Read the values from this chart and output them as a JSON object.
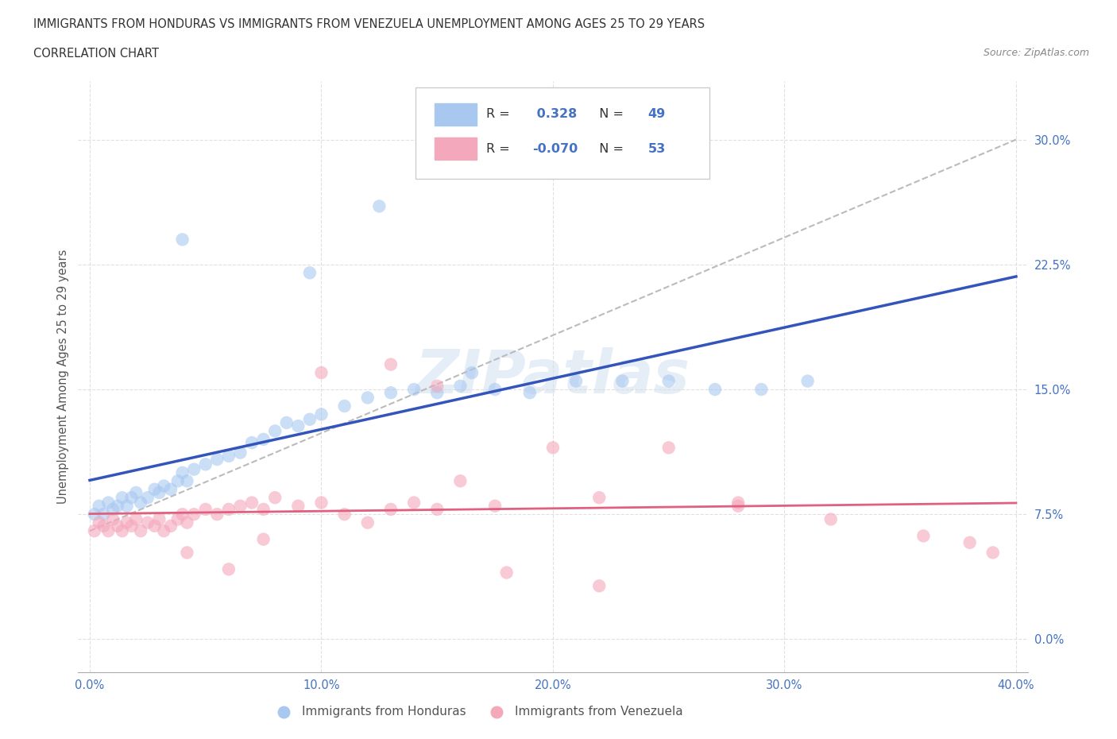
{
  "title_line1": "IMMIGRANTS FROM HONDURAS VS IMMIGRANTS FROM VENEZUELA UNEMPLOYMENT AMONG AGES 25 TO 29 YEARS",
  "title_line2": "CORRELATION CHART",
  "source_text": "Source: ZipAtlas.com",
  "ylabel": "Unemployment Among Ages 25 to 29 years",
  "xlim": [
    -0.005,
    0.405
  ],
  "ylim": [
    -0.02,
    0.335
  ],
  "xticks": [
    0.0,
    0.1,
    0.2,
    0.3,
    0.4
  ],
  "xticklabels": [
    "0.0%",
    "10.0%",
    "20.0%",
    "30.0%",
    "40.0%"
  ],
  "yticks": [
    0.0,
    0.075,
    0.15,
    0.225,
    0.3
  ],
  "yticklabels": [
    "0.0%",
    "7.5%",
    "15.0%",
    "22.5%",
    "30.0%"
  ],
  "honduras_color": "#a8c8f0",
  "venezuela_color": "#f4a8bc",
  "honduras_R": 0.328,
  "honduras_N": 49,
  "venezuela_R": -0.07,
  "venezuela_N": 53,
  "honduras_scatter_x": [
    0.002,
    0.004,
    0.006,
    0.008,
    0.01,
    0.012,
    0.014,
    0.016,
    0.018,
    0.02,
    0.022,
    0.025,
    0.028,
    0.03,
    0.032,
    0.035,
    0.038,
    0.04,
    0.042,
    0.045,
    0.05,
    0.055,
    0.06,
    0.065,
    0.07,
    0.075,
    0.08,
    0.085,
    0.09,
    0.095,
    0.1,
    0.11,
    0.12,
    0.13,
    0.14,
    0.15,
    0.16,
    0.175,
    0.19,
    0.21,
    0.23,
    0.25,
    0.27,
    0.29,
    0.31,
    0.165,
    0.125,
    0.095,
    0.04
  ],
  "honduras_scatter_y": [
    0.075,
    0.08,
    0.075,
    0.082,
    0.078,
    0.08,
    0.085,
    0.08,
    0.085,
    0.088,
    0.082,
    0.085,
    0.09,
    0.088,
    0.092,
    0.09,
    0.095,
    0.1,
    0.095,
    0.102,
    0.105,
    0.108,
    0.11,
    0.112,
    0.118,
    0.12,
    0.125,
    0.13,
    0.128,
    0.132,
    0.135,
    0.14,
    0.145,
    0.148,
    0.15,
    0.148,
    0.152,
    0.15,
    0.148,
    0.155,
    0.155,
    0.155,
    0.15,
    0.15,
    0.155,
    0.16,
    0.26,
    0.22,
    0.24
  ],
  "venezuela_scatter_x": [
    0.002,
    0.004,
    0.006,
    0.008,
    0.01,
    0.012,
    0.014,
    0.016,
    0.018,
    0.02,
    0.022,
    0.025,
    0.028,
    0.03,
    0.032,
    0.035,
    0.038,
    0.04,
    0.042,
    0.045,
    0.05,
    0.055,
    0.06,
    0.065,
    0.07,
    0.075,
    0.08,
    0.09,
    0.1,
    0.11,
    0.12,
    0.13,
    0.14,
    0.15,
    0.16,
    0.175,
    0.2,
    0.22,
    0.25,
    0.28,
    0.32,
    0.36,
    0.38,
    0.39,
    0.13,
    0.1,
    0.15,
    0.075,
    0.042,
    0.06,
    0.18,
    0.22,
    0.28
  ],
  "venezuela_scatter_y": [
    0.065,
    0.07,
    0.068,
    0.065,
    0.072,
    0.068,
    0.065,
    0.07,
    0.068,
    0.072,
    0.065,
    0.07,
    0.068,
    0.072,
    0.065,
    0.068,
    0.072,
    0.075,
    0.07,
    0.075,
    0.078,
    0.075,
    0.078,
    0.08,
    0.082,
    0.078,
    0.085,
    0.08,
    0.082,
    0.075,
    0.07,
    0.078,
    0.082,
    0.078,
    0.095,
    0.08,
    0.115,
    0.085,
    0.115,
    0.08,
    0.072,
    0.062,
    0.058,
    0.052,
    0.165,
    0.16,
    0.152,
    0.06,
    0.052,
    0.042,
    0.04,
    0.032,
    0.082
  ],
  "trend_blue_color": "#3355BB",
  "trend_pink_color": "#E06080",
  "trend_dashed_color": "#BBBBBB",
  "watermark_text": "ZIPatlas",
  "watermark_color": "#CCDDEE",
  "legend_label_honduras": "Immigrants from Honduras",
  "legend_label_venezuela": "Immigrants from Venezuela",
  "tick_color": "#4472C4",
  "background_color": "#FFFFFF",
  "grid_color": "#DDDDDD"
}
